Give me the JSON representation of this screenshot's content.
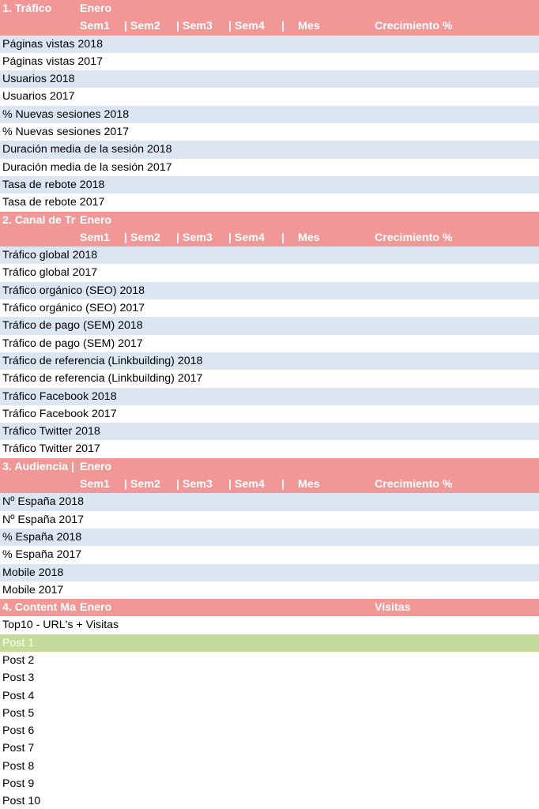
{
  "sections": [
    {
      "title": "1. Tráfico",
      "month": "Enero",
      "columns": [
        "Sem1",
        "| Sem2",
        "| Sem3",
        "| Sem4",
        "|",
        "Mes",
        "Crecimiento %"
      ],
      "rows": [
        "Páginas vistas 2018",
        "Páginas vistas 2017",
        "Usuarios 2018",
        "Usuarios 2017",
        "% Nuevas sesiones 2018",
        "% Nuevas sesiones 2017",
        "Duración media de la sesión 2018",
        "Duración media de la sesión 2017",
        "Tasa de rebote 2018",
        "Tasa de rebote 2017"
      ]
    },
    {
      "title": "2. Canal de Tr",
      "month": "Enero",
      "columns": [
        "Sem1",
        "| Sem2",
        "| Sem3",
        "| Sem4",
        "|",
        "Mes",
        "Crecimiento %"
      ],
      "rows": [
        "Tráfico global 2018",
        "Tráfico global 2017",
        "Tráfico orgánico (SEO) 2018",
        "Tráfico orgánico (SEO) 2017",
        "Tráfico de pago (SEM) 2018",
        "Tráfico de pago (SEM) 2017",
        "Tráfico de referencia (Linkbuilding) 2018",
        "Tráfico de referencia (Linkbuilding) 2017",
        "Tráfico Facebook 2018",
        "Tráfico Facebook 2017",
        "Tráfico Twitter 2018",
        "Tráfico Twitter 2017"
      ]
    },
    {
      "title": "3. Audiencia |",
      "month": "Enero",
      "columns": [
        "Sem1",
        "| Sem2",
        "| Sem3",
        "| Sem4",
        "|",
        "Mes",
        "Crecimiento %"
      ],
      "rows": [
        "Nº España 2018",
        "Nº España 2017",
        "% España 2018",
        "% España 2017",
        "Mobile 2018",
        "Mobile 2017"
      ]
    }
  ],
  "content": {
    "title": "4. Content Ma",
    "month": "Enero",
    "visits_label": "Visitas",
    "subtitle": "Top10 - URL's + Visitas",
    "posts": [
      "Post 1",
      "Post 2",
      "Post 3",
      "Post 4",
      "Post 5",
      "Post 6",
      "Post 7",
      "Post 8",
      "Post 9",
      "Post 10"
    ]
  },
  "colors": {
    "header": "#f19897",
    "band": "#dce6f2",
    "highlight": "#c4db9a"
  }
}
